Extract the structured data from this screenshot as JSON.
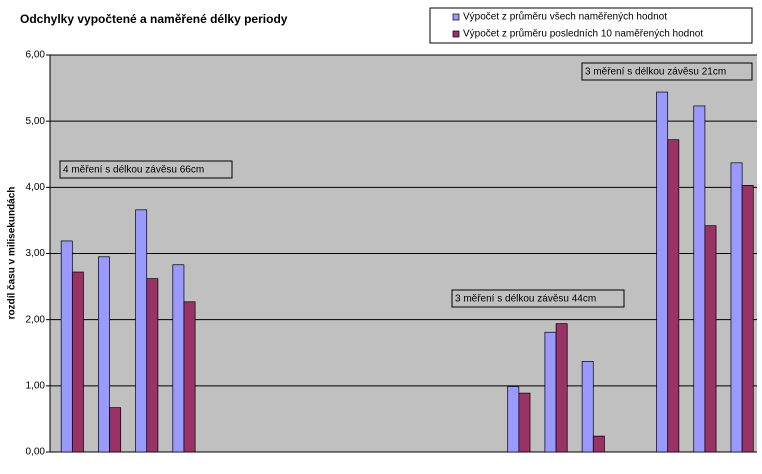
{
  "chart_data": {
    "type": "bar",
    "title": "Odchylky vypočtené a naměřené délky periody",
    "y_label": "rozdíl času v milisekundách",
    "categories": [
      null,
      null,
      null,
      null,
      null,
      null,
      null,
      null,
      null,
      null,
      null,
      null,
      null,
      null,
      null,
      null,
      null,
      null,
      null
    ],
    "series": [
      {
        "name": "Výpočet z průměru všech naměřených hodnot",
        "color": "#9999ff",
        "values": [
          3.19,
          2.95,
          3.66,
          2.83,
          null,
          null,
          null,
          null,
          null,
          null,
          null,
          null,
          0.99,
          1.81,
          1.37,
          null,
          5.44,
          5.23,
          4.37
        ]
      },
      {
        "name": "Výpočet z průměru posledních 10 naměřených hodnot",
        "color": "#993366",
        "values": [
          2.72,
          0.67,
          2.62,
          2.27,
          null,
          null,
          null,
          null,
          null,
          null,
          null,
          null,
          0.89,
          1.94,
          0.24,
          null,
          4.72,
          3.42,
          4.03
        ]
      }
    ],
    "ylim": [
      0,
      6
    ],
    "yticks": [
      {
        "value": 0,
        "label": "0,00"
      },
      {
        "value": 1,
        "label": "1,00"
      },
      {
        "value": 2,
        "label": "2,00"
      },
      {
        "value": 3,
        "label": "3,00"
      },
      {
        "value": 4,
        "label": "4,00"
      },
      {
        "value": 5,
        "label": "5,00"
      },
      {
        "value": 6,
        "label": "6,00"
      }
    ],
    "grid": true,
    "annotations": [
      "4 měření s délkou závěsu 66cm",
      "3 měření s délkou závěsu 44cm",
      "3 měření s délkou závěsu 21cm"
    ]
  }
}
